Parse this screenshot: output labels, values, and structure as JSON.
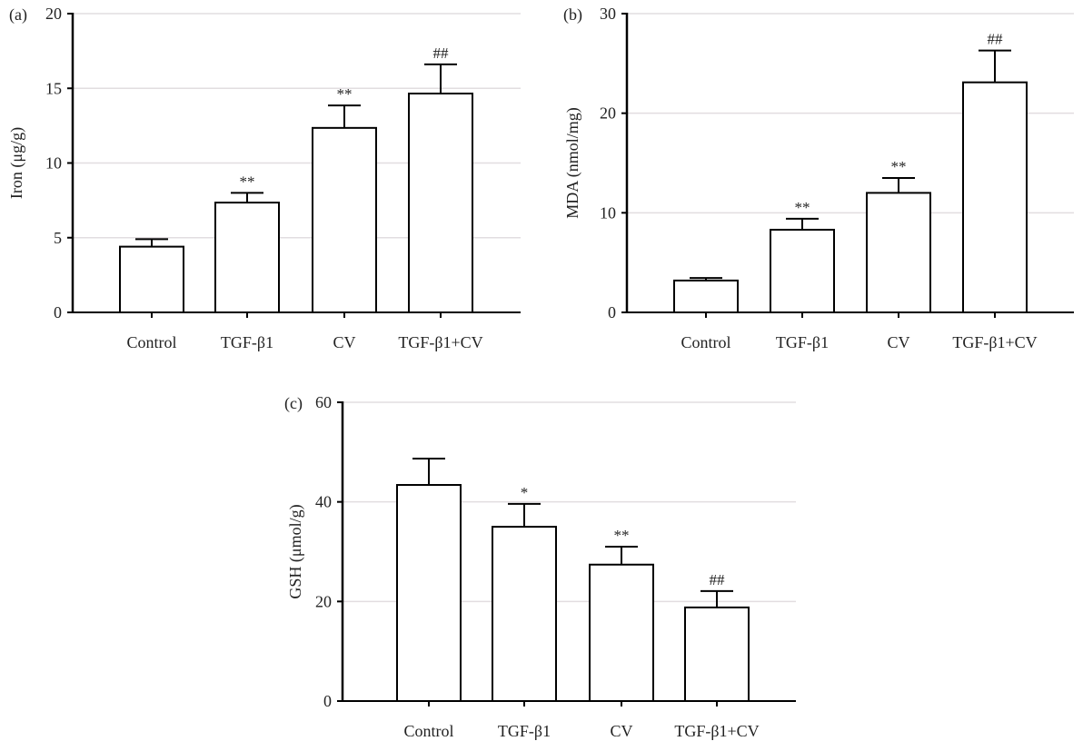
{
  "chart_data": [
    {
      "type": "bar",
      "panel_label": "(a)",
      "ylabel": "Iron (μg/g)",
      "categories": [
        "Control",
        "TGF-β1",
        "CV",
        "TGF-β1+CV"
      ],
      "values": [
        4.4,
        7.35,
        12.35,
        14.65
      ],
      "error_upper": [
        4.9,
        8.0,
        13.85,
        16.6
      ],
      "annotations": [
        "",
        "**",
        "**",
        "##"
      ],
      "ylim": [
        0,
        20
      ],
      "yticks": [
        0,
        5,
        10,
        15,
        20
      ],
      "grid": true
    },
    {
      "type": "bar",
      "panel_label": "(b)",
      "ylabel": "MDA (nmol/mg)",
      "categories": [
        "Control",
        "TGF-β1",
        "CV",
        "TGF-β1+CV"
      ],
      "values": [
        3.2,
        8.3,
        12.0,
        23.1
      ],
      "error_upper": [
        3.45,
        9.4,
        13.5,
        26.3
      ],
      "annotations": [
        "",
        "**",
        "**",
        "##"
      ],
      "ylim": [
        0,
        30
      ],
      "yticks": [
        0,
        10,
        20,
        30
      ],
      "grid": true
    },
    {
      "type": "bar",
      "panel_label": "(c)",
      "ylabel": "GSH (μmol/g)",
      "categories": [
        "Control",
        "TGF-β1",
        "CV",
        "TGF-β1+CV"
      ],
      "values": [
        43.4,
        35.0,
        27.4,
        18.8
      ],
      "error_upper": [
        48.7,
        39.6,
        31.0,
        22.1
      ],
      "annotations": [
        "",
        "*",
        "**",
        "##"
      ],
      "ylim": [
        0,
        60
      ],
      "yticks": [
        0,
        20,
        40,
        60
      ],
      "grid": true
    }
  ],
  "colors": {
    "bar_fill": "#ffffff",
    "bar_stroke": "#000000",
    "grid": "#e2dde0",
    "annotation": "#333333"
  }
}
